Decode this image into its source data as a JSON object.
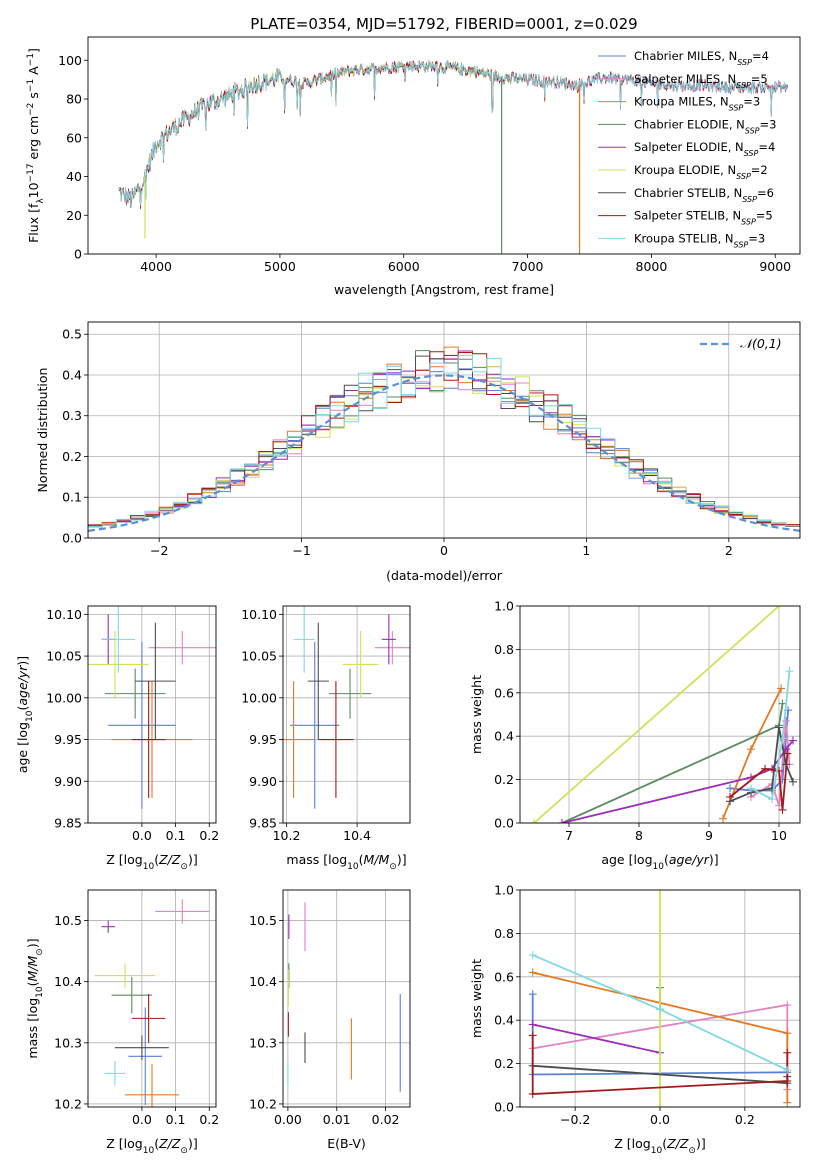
{
  "colors": {
    "Chabrier MILES": "#5b7fd6",
    "Salpeter MILES": "#e283c2",
    "Kroupa MILES": "#e37a22",
    "Chabrier ELODIE": "#5c8a63",
    "Salpeter ELODIE": "#9b2fb5",
    "Kroupa ELODIE": "#cfe25a",
    "Chabrier STELIB": "#4d4d4d",
    "Salpeter STELIB": "#a31a1a",
    "Kroupa STELIB": "#7fd9e0",
    "gauss": "#5b8fd6"
  },
  "chart_data": [
    {
      "id": "spectrum",
      "type": "line",
      "title": "PLATE=0354, MJD=51792, FIBERID=0001, z=0.029",
      "xlabel": "wavelength [Angstrom, rest frame]",
      "ylabel": "Flux [fλ10⁻¹⁷ erg cm⁻² s⁻¹ A⁻¹]",
      "xlim": [
        3450,
        9200
      ],
      "ylim": [
        0,
        112
      ],
      "xticks": [
        4000,
        5000,
        6000,
        7000,
        8000,
        9000
      ],
      "yticks": [
        0,
        20,
        40,
        60,
        80,
        100
      ],
      "legend_position": "upper right",
      "series": [
        {
          "name": "Chabrier MILES",
          "nssp": "4"
        },
        {
          "name": "Salpeter MILES",
          "nssp": "5"
        },
        {
          "name": "Kroupa MILES",
          "nssp": "3"
        },
        {
          "name": "Chabrier ELODIE",
          "nssp": "3"
        },
        {
          "name": "Salpeter ELODIE",
          "nssp": "4"
        },
        {
          "name": "Kroupa ELODIE",
          "nssp": "2"
        },
        {
          "name": "Chabrier STELIB",
          "nssp": "6"
        },
        {
          "name": "Salpeter STELIB",
          "nssp": "5"
        },
        {
          "name": "Kroupa STELIB",
          "nssp": "3"
        }
      ],
      "continuum": {
        "x": [
          3700,
          3800,
          3900,
          4000,
          4100,
          4200,
          4400,
          4600,
          4800,
          5000,
          5200,
          5400,
          5600,
          5800,
          6000,
          6200,
          6400,
          6600,
          6800,
          7000,
          7200,
          7400,
          7600,
          7800,
          8000,
          8200,
          8400,
          8600,
          8800,
          9000,
          9100
        ],
        "y": [
          32,
          28,
          38,
          57,
          63,
          68,
          77,
          82,
          88,
          91,
          88,
          92,
          95,
          96,
          97,
          97,
          96,
          94,
          91,
          90,
          89,
          87,
          91,
          90,
          88,
          87,
          87,
          86,
          86,
          86,
          86
        ]
      },
      "dips": [
        {
          "x": 6790,
          "y": 0,
          "series": "Chabrier ELODIE"
        },
        {
          "x": 7420,
          "y": 0,
          "series": "Kroupa MILES"
        },
        {
          "x": 3910,
          "y": 8,
          "series": "Kroupa ELODIE"
        }
      ]
    },
    {
      "id": "residuals",
      "type": "histogram",
      "xlabel": "(data-model)/error",
      "ylabel": "Normed distribution",
      "xlim": [
        -2.5,
        2.5
      ],
      "ylim": [
        0,
        0.53
      ],
      "xticks": [
        -2,
        -1,
        0,
        1,
        2
      ],
      "yticks": [
        0.0,
        0.1,
        0.2,
        0.3,
        0.4,
        0.5
      ],
      "legend": [
        {
          "label": "𝒩(0,1)",
          "style": "dashed"
        }
      ],
      "legend_position": "upper right",
      "bin_width": 0.1,
      "bin_start": -2.5,
      "base_heights": [
        0.018,
        0.022,
        0.026,
        0.031,
        0.037,
        0.044,
        0.052,
        0.06,
        0.07,
        0.08,
        0.092,
        0.104,
        0.117,
        0.131,
        0.146,
        0.161,
        0.178,
        0.195,
        0.213,
        0.23,
        0.25,
        0.268,
        0.287,
        0.305,
        0.322,
        0.338,
        0.353,
        0.366,
        0.378,
        0.388,
        0.395,
        0.4,
        0.402,
        0.403,
        0.4,
        0.395,
        0.388,
        0.378,
        0.366,
        0.353,
        0.338,
        0.322,
        0.305,
        0.287,
        0.268,
        0.25,
        0.23,
        0.213,
        0.195,
        0.178,
        0.161,
        0.146,
        0.131,
        0.117,
        0.104,
        0.092,
        0.08,
        0.07,
        0.06,
        0.052,
        0.044,
        0.037,
        0.031,
        0.026,
        0.022,
        0.018,
        0.016,
        0.014,
        0.012,
        0.011,
        0.01,
        0.009,
        0.008,
        0.008,
        0.007,
        0.007,
        0.006,
        0.006,
        0.006,
        0.005,
        0.005,
        0.005,
        0.005,
        0.005,
        0.005,
        0.005,
        0.005,
        0.005,
        0.005,
        0.005,
        0.005,
        0.005,
        0.005,
        0.005,
        0.005,
        0.005,
        0.005,
        0.005,
        0.005,
        0.005
      ]
    },
    {
      "id": "age_vs_Z",
      "type": "errorbar",
      "xlabel": "Z [log10(Z/Z⊙)]",
      "ylabel": "age  [log10(age/yr)]",
      "xlim": [
        -0.16,
        0.22
      ],
      "ylim": [
        9.85,
        10.11
      ],
      "xticks": [
        0.0,
        0.1,
        0.2
      ],
      "yticks": [
        9.85,
        9.9,
        9.95,
        10.0,
        10.05,
        10.1
      ],
      "points": [
        {
          "series": "Chabrier MILES",
          "x": 0.0,
          "y": 9.967,
          "xerr": 0.1,
          "yerr": 0.1
        },
        {
          "series": "Salpeter MILES",
          "x": 0.12,
          "y": 10.06,
          "xerr": 0.1,
          "yerr": 0.02
        },
        {
          "series": "Kroupa MILES",
          "x": 0.03,
          "y": 9.95,
          "xerr": 0.12,
          "yerr": 0.07
        },
        {
          "series": "Chabrier ELODIE",
          "x": -0.02,
          "y": 10.005,
          "xerr": 0.09,
          "yerr": 0.03
        },
        {
          "series": "Salpeter ELODIE",
          "x": -0.1,
          "y": 10.07,
          "xerr": 0.02,
          "yerr": 0.03
        },
        {
          "series": "Kroupa ELODIE",
          "x": -0.08,
          "y": 10.04,
          "xerr": 0.1,
          "yerr": 0.04
        },
        {
          "series": "Chabrier STELIB",
          "x": 0.04,
          "y": 10.02,
          "xerr": 0.06,
          "yerr": 0.07
        },
        {
          "series": "Salpeter STELIB",
          "x": 0.02,
          "y": 9.95,
          "xerr": 0.05,
          "yerr": 0.07
        },
        {
          "series": "Kroupa STELIB",
          "x": -0.07,
          "y": 10.07,
          "xerr": 0.05,
          "yerr": 0.04
        }
      ]
    },
    {
      "id": "age_vs_mass",
      "type": "errorbar",
      "xlabel": "mass [log10(M/M⊙)]",
      "ylabel": "",
      "xlim": [
        10.19,
        10.55
      ],
      "ylim": [
        9.85,
        10.11
      ],
      "xticks": [
        10.2,
        10.4
      ],
      "yticks": [
        9.85,
        9.9,
        9.95,
        10.0,
        10.05,
        10.1
      ],
      "points": [
        {
          "series": "Chabrier MILES",
          "x": 10.28,
          "y": 9.967,
          "xerr": 0.07,
          "yerr": 0.1
        },
        {
          "series": "Salpeter MILES",
          "x": 10.5,
          "y": 10.06,
          "xerr": 0.05,
          "yerr": 0.02
        },
        {
          "series": "Kroupa MILES",
          "x": 10.22,
          "y": 9.95,
          "xerr": 0.06,
          "yerr": 0.07
        },
        {
          "series": "Chabrier ELODIE",
          "x": 10.38,
          "y": 10.005,
          "xerr": 0.06,
          "yerr": 0.03
        },
        {
          "series": "Salpeter ELODIE",
          "x": 10.49,
          "y": 10.07,
          "xerr": 0.02,
          "yerr": 0.03
        },
        {
          "series": "Kroupa ELODIE",
          "x": 10.41,
          "y": 10.04,
          "xerr": 0.05,
          "yerr": 0.04
        },
        {
          "series": "Chabrier STELIB",
          "x": 10.29,
          "y": 10.02,
          "xerr": 0.03,
          "yerr": 0.07
        },
        {
          "series": "Salpeter STELIB",
          "x": 10.34,
          "y": 9.95,
          "xerr": 0.05,
          "yerr": 0.07
        },
        {
          "series": "Kroupa STELIB",
          "x": 10.25,
          "y": 10.07,
          "xerr": 0.03,
          "yerr": 0.04
        }
      ]
    },
    {
      "id": "weight_vs_age",
      "type": "line",
      "xlabel": "age  [log10(age/yr)]",
      "ylabel": "mass weight",
      "xlim": [
        6.3,
        10.3
      ],
      "ylim": [
        0,
        1
      ],
      "xticks": [
        7,
        8,
        9,
        10
      ],
      "yticks": [
        0.0,
        0.2,
        0.4,
        0.6,
        0.8,
        1.0
      ],
      "series": [
        {
          "name": "Chabrier MILES",
          "x": [
            9.3,
            9.6,
            9.9,
            10.05,
            10.13
          ],
          "y": [
            0.16,
            0.15,
            0.15,
            0.2,
            0.52
          ]
        },
        {
          "name": "Salpeter MILES",
          "x": [
            9.6,
            9.9,
            10.0,
            10.1,
            10.15
          ],
          "y": [
            0.12,
            0.18,
            0.08,
            0.47,
            0.27
          ]
        },
        {
          "name": "Kroupa MILES",
          "x": [
            9.2,
            9.6,
            10.03
          ],
          "y": [
            0.02,
            0.34,
            0.62
          ]
        },
        {
          "name": "Chabrier ELODIE",
          "x": [
            6.9,
            10.0,
            10.05
          ],
          "y": [
            0.0,
            0.45,
            0.55
          ]
        },
        {
          "name": "Salpeter ELODIE",
          "x": [
            6.9,
            9.6,
            9.9,
            10.1,
            10.2
          ],
          "y": [
            0.0,
            0.21,
            0.25,
            0.34,
            0.38
          ]
        },
        {
          "name": "Kroupa ELODIE",
          "x": [
            6.5,
            10.0
          ],
          "y": [
            0.0,
            1.0
          ]
        },
        {
          "name": "Chabrier STELIB",
          "x": [
            9.3,
            9.6,
            9.9,
            10.0,
            10.1,
            10.2
          ],
          "y": [
            0.1,
            0.14,
            0.16,
            0.44,
            0.27,
            0.19
          ]
        },
        {
          "name": "Salpeter STELIB",
          "x": [
            9.3,
            9.8,
            10.0,
            10.05,
            10.12
          ],
          "y": [
            0.12,
            0.25,
            0.24,
            0.06,
            0.32
          ]
        },
        {
          "name": "Kroupa STELIB",
          "x": [
            9.6,
            9.9,
            10.05,
            10.15
          ],
          "y": [
            0.16,
            0.11,
            0.39,
            0.7
          ]
        }
      ]
    },
    {
      "id": "mass_vs_Z",
      "type": "errorbar",
      "xlabel": "Z [log10(Z/Z⊙)]",
      "ylabel": "mass [log10(M/M⊙)]",
      "xlim": [
        -0.16,
        0.22
      ],
      "ylim": [
        10.195,
        10.55
      ],
      "xticks": [
        0.0,
        0.1,
        0.2
      ],
      "yticks": [
        10.2,
        10.3,
        10.4,
        10.5
      ],
      "points": [
        {
          "series": "Chabrier MILES",
          "x": 0.01,
          "y": 10.278,
          "xerr": 0.05,
          "yerr": 0.08
        },
        {
          "series": "Salpeter MILES",
          "x": 0.12,
          "y": 10.515,
          "xerr": 0.08,
          "yerr": 0.02
        },
        {
          "series": "Kroupa MILES",
          "x": 0.03,
          "y": 10.215,
          "xerr": 0.08,
          "yerr": 0.05
        },
        {
          "series": "Chabrier ELODIE",
          "x": -0.03,
          "y": 10.378,
          "xerr": 0.06,
          "yerr": 0.03
        },
        {
          "series": "Salpeter ELODIE",
          "x": -0.1,
          "y": 10.49,
          "xerr": 0.02,
          "yerr": 0.01
        },
        {
          "series": "Kroupa ELODIE",
          "x": -0.05,
          "y": 10.41,
          "xerr": 0.09,
          "yerr": 0.02
        },
        {
          "series": "Chabrier STELIB",
          "x": -0.0,
          "y": 10.292,
          "xerr": 0.08,
          "yerr": 0.02
        },
        {
          "series": "Salpeter STELIB",
          "x": 0.02,
          "y": 10.34,
          "xerr": 0.05,
          "yerr": 0.04
        },
        {
          "series": "Kroupa STELIB",
          "x": -0.08,
          "y": 10.25,
          "xerr": 0.03,
          "yerr": 0.02
        }
      ]
    },
    {
      "id": "mass_vs_ebv",
      "type": "errorbar",
      "xlabel": "E(B-V)",
      "ylabel": "",
      "xlim": [
        -0.001,
        0.025
      ],
      "ylim": [
        10.195,
        10.55
      ],
      "xticks": [
        0.0,
        0.01,
        0.02
      ],
      "yticks": [
        10.2,
        10.3,
        10.4,
        10.5
      ],
      "points": [
        {
          "series": "Chabrier MILES",
          "x": 0.023,
          "y": 10.3,
          "xerr": 0.0,
          "yerr": 0.08
        },
        {
          "series": "Salpeter MILES",
          "x": 0.0035,
          "y": 10.49,
          "xerr": 0.0,
          "yerr": 0.04
        },
        {
          "series": "Kroupa MILES",
          "x": 0.013,
          "y": 10.29,
          "xerr": 0.0,
          "yerr": 0.05
        },
        {
          "series": "Chabrier ELODIE",
          "x": 0.0002,
          "y": 10.41,
          "xerr": 0.0,
          "yerr": 0.02
        },
        {
          "series": "Salpeter ELODIE",
          "x": 0.0002,
          "y": 10.49,
          "xerr": 0.0,
          "yerr": 0.02
        },
        {
          "series": "Kroupa ELODIE",
          "x": 0.0001,
          "y": 10.39,
          "xerr": 0.0,
          "yerr": 0.03
        },
        {
          "series": "Chabrier STELIB",
          "x": 0.0035,
          "y": 10.292,
          "xerr": 0.0,
          "yerr": 0.025
        },
        {
          "series": "Salpeter STELIB",
          "x": 0.0001,
          "y": 10.33,
          "xerr": 0.0,
          "yerr": 0.02
        },
        {
          "series": "Kroupa STELIB",
          "x": 0.0,
          "y": 10.25,
          "xerr": 0.0,
          "yerr": 0.02
        }
      ]
    },
    {
      "id": "weight_vs_Z",
      "type": "line",
      "xlabel": "Z [log10(Z/Z⊙)]",
      "ylabel": "mass weight",
      "xlim": [
        -0.33,
        0.33
      ],
      "ylim": [
        0,
        1
      ],
      "xticks": [
        -0.2,
        0.0,
        0.2
      ],
      "yticks": [
        0.0,
        0.2,
        0.4,
        0.6,
        0.8,
        1.0
      ],
      "series": [
        {
          "name": "Chabrier MILES",
          "x": [
            -0.3,
            -0.3,
            0.3
          ],
          "y": [
            0.52,
            0.15,
            0.16
          ]
        },
        {
          "name": "Salpeter MILES",
          "x": [
            -0.3,
            0.3,
            0.3
          ],
          "y": [
            0.27,
            0.47,
            0.08
          ]
        },
        {
          "name": "Kroupa MILES",
          "x": [
            -0.3,
            0.3,
            0.3
          ],
          "y": [
            0.62,
            0.34,
            0.02
          ]
        },
        {
          "name": "Chabrier ELODIE",
          "x": [
            0.0,
            0.0
          ],
          "y": [
            0.55,
            0.45
          ]
        },
        {
          "name": "Salpeter ELODIE",
          "x": [
            -0.3,
            0.0
          ],
          "y": [
            0.38,
            0.25
          ]
        },
        {
          "name": "Kroupa ELODIE",
          "x": [
            0.0,
            0.0
          ],
          "y": [
            0.0,
            1.0
          ]
        },
        {
          "name": "Chabrier STELIB",
          "x": [
            -0.3,
            0.3,
            0.3
          ],
          "y": [
            0.19,
            0.11,
            0.14
          ]
        },
        {
          "name": "Salpeter STELIB",
          "x": [
            -0.3,
            -0.3,
            0.3,
            0.3
          ],
          "y": [
            0.33,
            0.06,
            0.12,
            0.25
          ]
        },
        {
          "name": "Kroupa STELIB",
          "x": [
            -0.3,
            0.0,
            0.3
          ],
          "y": [
            0.7,
            0.45,
            0.17
          ]
        }
      ]
    }
  ]
}
